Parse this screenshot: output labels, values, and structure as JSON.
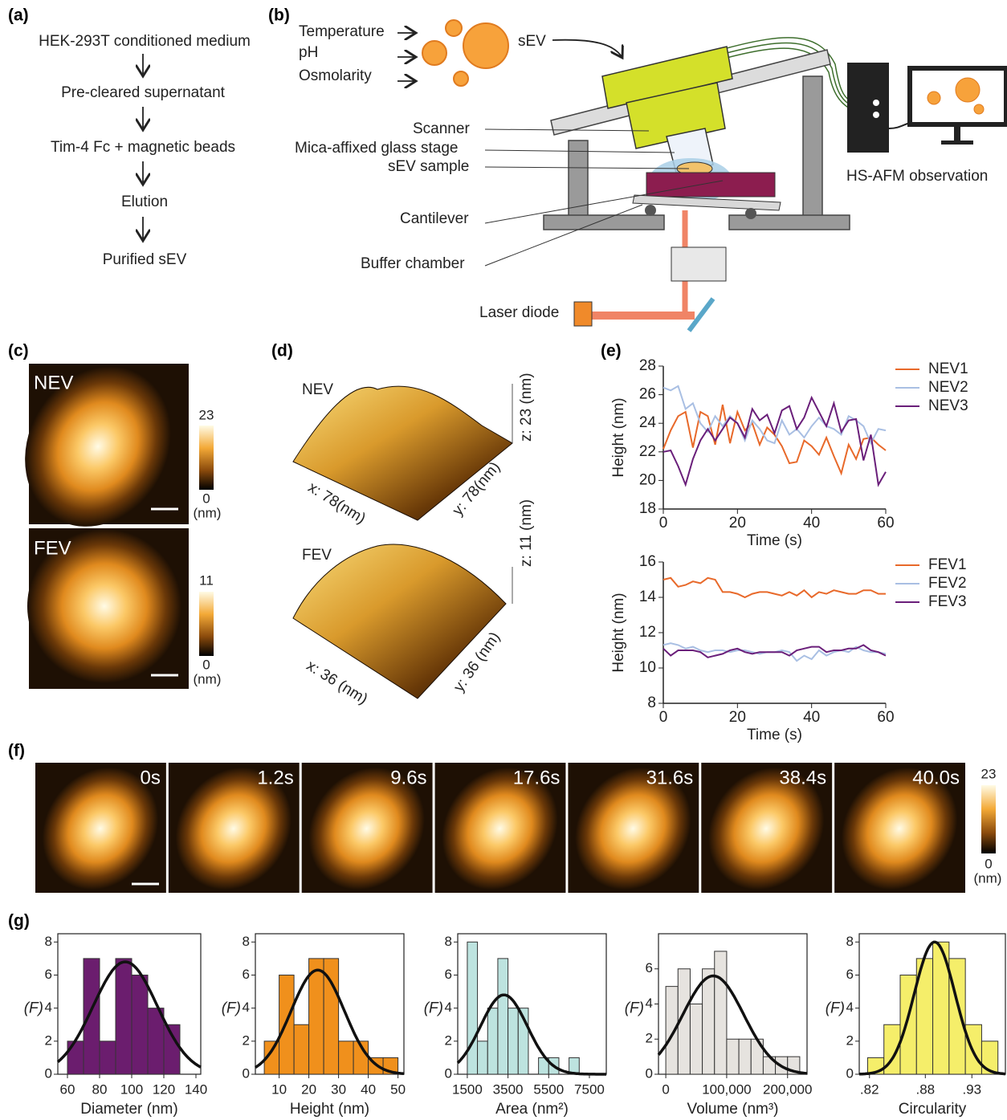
{
  "panel_a": {
    "label": "(a)",
    "steps": [
      "HEK-293T conditioned medium",
      "Pre-cleared supernatant",
      "Tim-4 Fc + magnetic beads",
      "Elution",
      "Purified sEV"
    ]
  },
  "panel_b": {
    "label": "(b)",
    "conditions": [
      "Temperature",
      "pH",
      "Osmolarity"
    ],
    "vesicle": "sEV",
    "parts": [
      "Scanner",
      "Mica-affixed glass stage",
      "sEV sample",
      "Cantilever",
      "Buffer chamber"
    ],
    "laser": "Laser diode",
    "observation": "HS-AFM observation"
  },
  "panel_c": {
    "label": "(c)",
    "images": [
      {
        "name": "NEV",
        "max": 23,
        "min": 0,
        "unit": "(nm)"
      },
      {
        "name": "FEV",
        "max": 11,
        "min": 0,
        "unit": "(nm)"
      }
    ]
  },
  "panel_d": {
    "label": "(d)",
    "images": [
      {
        "name": "NEV",
        "x_axis": "x: 78(nm)",
        "y_axis": "y: 78(nm)",
        "z_axis": "z: 23 (nm)"
      },
      {
        "name": "FEV",
        "x_axis": "x: 36 (nm)",
        "y_axis": "y: 36 (nm)",
        "z_axis": "z: 11 (nm)"
      }
    ]
  },
  "panel_e": {
    "label": "(e)"
  },
  "panel_f": {
    "label": "(f)",
    "frames": [
      "0s",
      "1.2s",
      "9.6s",
      "17.6s",
      "31.6s",
      "38.4s",
      "40.0s"
    ],
    "max": 23,
    "min": 0,
    "unit": "(nm)"
  },
  "panel_g": {
    "label": "(g)"
  },
  "chart_data": [
    {
      "type": "line",
      "x_label": "Time (s)",
      "y_label": "Height (nm)",
      "x": [
        0,
        2,
        4,
        6,
        8,
        10,
        12,
        14,
        16,
        18,
        20,
        22,
        24,
        26,
        28,
        30,
        32,
        34,
        36,
        38,
        40,
        42,
        44,
        46,
        48,
        50,
        52,
        54,
        56,
        58,
        60
      ],
      "xlim": [
        0,
        60
      ],
      "xticks": [
        0,
        20,
        40,
        60
      ],
      "ylim": [
        18,
        28
      ],
      "yticks": [
        18,
        20,
        22,
        24,
        26,
        28
      ],
      "series": [
        {
          "name": "NEV1",
          "color": "#e8692a",
          "values": [
            22.2,
            23.5,
            24.5,
            24.8,
            22.3,
            24.8,
            24.5,
            22.5,
            25.3,
            22.6,
            24.8,
            23.5,
            24,
            22.5,
            23.7,
            23.2,
            22.4,
            21.2,
            21.3,
            22.8,
            22.4,
            21.8,
            23,
            21.7,
            20.5,
            22.5,
            21.5,
            22.9,
            23,
            22.5,
            22.1
          ]
        },
        {
          "name": "NEV2",
          "color": "#a9bfe3",
          "values": [
            26.5,
            26.3,
            26.6,
            25,
            25.4,
            24,
            23.4,
            24.5,
            23.8,
            24.5,
            24,
            22.8,
            24.2,
            23.6,
            22.8,
            22.6,
            24.2,
            23.2,
            23.6,
            23,
            23.8,
            24.4,
            23.8,
            23.6,
            23.2,
            24.5,
            24.2,
            23.8,
            22.6,
            23.6,
            23.5
          ]
        },
        {
          "name": "NEV3",
          "color": "#6a1f7a",
          "values": [
            22,
            22.1,
            21,
            19.7,
            21.5,
            22.8,
            23.6,
            22.8,
            23.6,
            24.4,
            24,
            23,
            25,
            24.2,
            24.6,
            23.3,
            24.9,
            25.2,
            23.6,
            24.4,
            25.8,
            24.8,
            23.8,
            25.4,
            23.4,
            24.2,
            24.3,
            21.4,
            23.2,
            19.7,
            20.6
          ]
        }
      ]
    },
    {
      "type": "line",
      "x_label": "Time (s)",
      "y_label": "Height (nm)",
      "x": [
        0,
        2,
        4,
        6,
        8,
        10,
        12,
        14,
        16,
        18,
        20,
        22,
        24,
        26,
        28,
        30,
        32,
        34,
        36,
        38,
        40,
        42,
        44,
        46,
        48,
        50,
        52,
        54,
        56,
        58,
        60
      ],
      "xlim": [
        0,
        60
      ],
      "xticks": [
        0,
        20,
        40,
        60
      ],
      "ylim": [
        8,
        16
      ],
      "yticks": [
        8,
        10,
        12,
        14,
        16
      ],
      "series": [
        {
          "name": "FEV1",
          "color": "#e8692a",
          "values": [
            15,
            15.1,
            14.6,
            14.7,
            14.9,
            14.8,
            15.1,
            15,
            14.3,
            14.3,
            14.2,
            14,
            14.2,
            14.3,
            14.3,
            14.2,
            14.1,
            14.3,
            14.1,
            14.4,
            14,
            14.3,
            14.2,
            14.4,
            14.3,
            14.2,
            14.2,
            14.4,
            14.4,
            14.2,
            14.2
          ]
        },
        {
          "name": "FEV2",
          "color": "#a9bfe3",
          "values": [
            11.3,
            11.4,
            11.3,
            11.1,
            11.2,
            11,
            10.9,
            11,
            11,
            10.9,
            11,
            11,
            10.9,
            10.8,
            10.9,
            10.9,
            11,
            10.9,
            10.4,
            10.7,
            10.5,
            11,
            10.7,
            10.9,
            11,
            10.9,
            11.2,
            11,
            10.9,
            10.9,
            10.8
          ]
        },
        {
          "name": "FEV3",
          "color": "#6a1f7a",
          "values": [
            11.1,
            10.7,
            11,
            11,
            11,
            10.9,
            10.6,
            10.7,
            10.8,
            11,
            11.1,
            10.9,
            10.8,
            10.9,
            10.9,
            10.9,
            10.9,
            10.7,
            11,
            11.1,
            11.2,
            11.2,
            10.9,
            11,
            11,
            11.1,
            11.1,
            11.3,
            11,
            10.9,
            10.7
          ]
        }
      ]
    },
    {
      "type": "histogram",
      "x_label": "Diameter (nm)",
      "y_label": "(F)",
      "color": "#6b1d6e",
      "bins": [
        60,
        70,
        80,
        90,
        100,
        110,
        120,
        130
      ],
      "counts": [
        2,
        7,
        2,
        7,
        6,
        4,
        3
      ],
      "fit": {
        "mean": 96,
        "sd": 20,
        "peak": 6.8
      },
      "xlim": [
        54,
        143
      ],
      "xticks": [
        60,
        80,
        100,
        120,
        140
      ],
      "ylim": [
        0,
        8.5
      ],
      "yticks": [
        0,
        2,
        4,
        6,
        8
      ]
    },
    {
      "type": "histogram",
      "x_label": "Height (nm)",
      "y_label": "(F)",
      "color": "#f0901c",
      "bins": [
        5,
        10,
        15,
        20,
        25,
        30,
        35,
        40,
        45,
        50
      ],
      "counts": [
        2,
        6,
        3,
        7,
        7,
        2,
        2,
        1,
        1
      ],
      "fit": {
        "mean": 23,
        "sd": 9,
        "peak": 6.3
      },
      "xlim": [
        2,
        52
      ],
      "xticks": [
        10,
        20,
        30,
        40,
        50
      ],
      "ylim": [
        0,
        8.5
      ],
      "yticks": [
        0,
        2,
        4,
        6,
        8
      ]
    },
    {
      "type": "histogram",
      "x_label": "Area (nm²)",
      "y_label": "(F)",
      "color": "#bde3df",
      "bins": [
        1500,
        2000,
        2500,
        3000,
        3500,
        4000,
        4500,
        5000,
        5500,
        6000,
        6500,
        7000
      ],
      "counts": [
        8,
        2,
        4,
        7,
        4,
        4,
        0,
        1,
        1,
        0,
        1
      ],
      "fit": {
        "mean": 3300,
        "sd": 1150,
        "peak": 4.8
      },
      "xlim": [
        1030,
        8330
      ],
      "xticks": [
        1500,
        3500,
        5500,
        7500
      ],
      "ylim": [
        0,
        8.5
      ],
      "yticks": [
        0,
        2,
        4,
        6,
        8
      ]
    },
    {
      "type": "histogram",
      "x_label": "Volume (nm³)",
      "y_label": "(F)",
      "color": "#e6e3df",
      "bins": [
        0,
        20000,
        40000,
        60000,
        80000,
        100000,
        120000,
        140000,
        160000,
        180000,
        200000,
        220000
      ],
      "counts": [
        5,
        6,
        4,
        6,
        7,
        2,
        2,
        2,
        1,
        1,
        1
      ],
      "fit": {
        "mean": 78000,
        "sd": 50000,
        "peak": 5.6
      },
      "xlim": [
        -12000,
        232000
      ],
      "xticks": [
        0,
        {
          "value": 100000,
          "label": "100,000"
        },
        {
          "value": 200000,
          "label": "200,000"
        }
      ],
      "ylim": [
        0,
        8
      ],
      "yticks": [
        0,
        2,
        4,
        6
      ]
    },
    {
      "type": "histogram",
      "x_label": "Circularity",
      "y_label": "(F)",
      "color": "#f5ee6a",
      "bins": [
        0.818,
        0.8355,
        0.853,
        0.8705,
        0.888,
        0.9055,
        0.923,
        0.9405,
        0.958
      ],
      "counts": [
        1,
        3,
        6,
        7,
        8,
        7,
        3,
        2
      ],
      "fit": {
        "mean": 0.89,
        "sd": 0.022,
        "peak": 8
      },
      "xlim": [
        0.809,
        0.966
      ],
      "xticks": [
        {
          "value": 0.82,
          "label": ".82"
        },
        {
          "value": 0.88,
          "label": ".88"
        },
        {
          "value": 0.93,
          "label": ".93"
        }
      ],
      "ylim": [
        0,
        8.5
      ],
      "yticks": [
        0,
        2,
        4,
        6,
        8
      ]
    }
  ]
}
